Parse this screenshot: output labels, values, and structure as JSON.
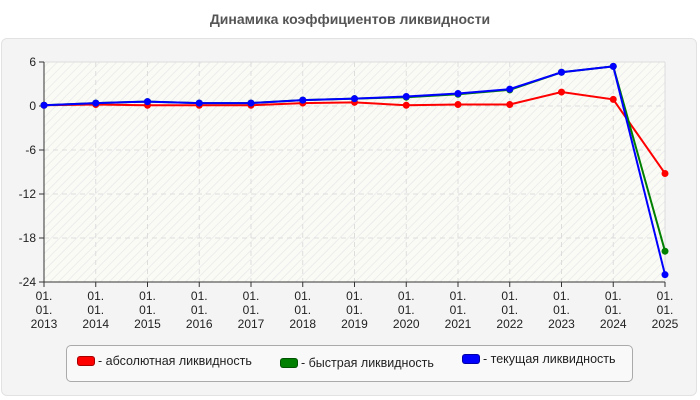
{
  "title": "Динамика коэффициентов ликвидности",
  "chart_data": {
    "type": "line",
    "title": "Динамика коэффициентов ликвидности",
    "xlabel": "",
    "ylabel": "",
    "categories": [
      "01.01.2013",
      "01.01.2014",
      "01.01.2015",
      "01.01.2016",
      "01.01.2017",
      "01.01.2018",
      "01.01.2019",
      "01.01.2020",
      "01.01.2021",
      "01.01.2022",
      "01.01.2023",
      "01.01.2024",
      "01.01.2025"
    ],
    "tick_labels": [
      [
        "01.",
        "01.",
        "2013"
      ],
      [
        "01.",
        "01.",
        "2014"
      ],
      [
        "01.",
        "01.",
        "2015"
      ],
      [
        "01.",
        "01.",
        "2016"
      ],
      [
        "01.",
        "01.",
        "2017"
      ],
      [
        "01.",
        "01.",
        "2018"
      ],
      [
        "01.",
        "01.",
        "2019"
      ],
      [
        "01.",
        "01.",
        "2020"
      ],
      [
        "01.",
        "01.",
        "2021"
      ],
      [
        "01.",
        "01.",
        "2022"
      ],
      [
        "01.",
        "01.",
        "2023"
      ],
      [
        "01.",
        "01.",
        "2024"
      ],
      [
        "01.",
        "01.",
        "2025"
      ]
    ],
    "series": [
      {
        "name": "абсолютная ликвидность",
        "color": "#ff0000",
        "values": [
          0.1,
          0.2,
          0.1,
          0.1,
          0.1,
          0.4,
          0.5,
          0.1,
          0.2,
          0.2,
          1.9,
          0.9,
          -9.2
        ]
      },
      {
        "name": "быстрая ликвидность",
        "color": "#008000",
        "values": [
          0.1,
          0.4,
          0.6,
          0.4,
          0.4,
          0.8,
          1.0,
          1.2,
          1.6,
          2.2,
          4.6,
          5.4,
          -19.8
        ]
      },
      {
        "name": "текущая ликвидность",
        "color": "#0000ff",
        "values": [
          0.1,
          0.4,
          0.6,
          0.4,
          0.4,
          0.8,
          1.0,
          1.3,
          1.7,
          2.3,
          4.6,
          5.4,
          -23.0
        ]
      }
    ],
    "yticks": [
      6,
      0,
      -6,
      -12,
      -18,
      -24
    ],
    "ylim": [
      -24,
      6
    ],
    "grid": true,
    "legend_position": "bottom"
  },
  "legend": {
    "items": [
      {
        "label": "- абсолютная ликвидность",
        "color": "#ff0000"
      },
      {
        "label": "- быстрая ликвидность",
        "color": "#008000"
      },
      {
        "label": "- текущая ликвидность",
        "color": "#0000ff"
      }
    ]
  }
}
